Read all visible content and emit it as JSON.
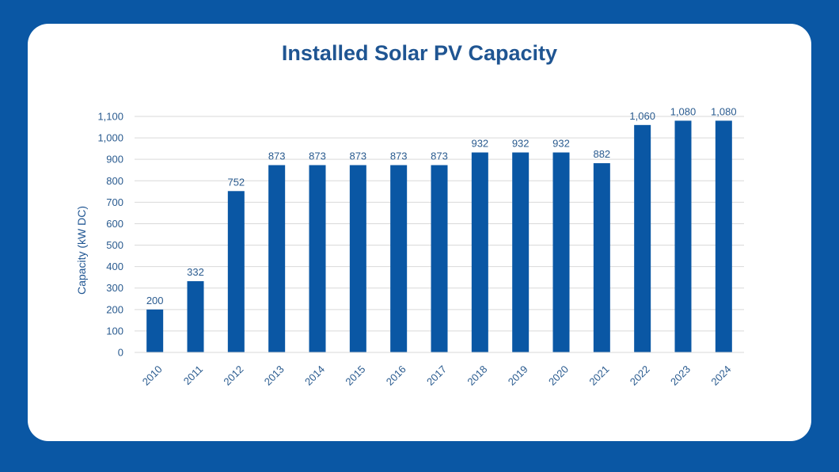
{
  "colors": {
    "background": "#0a57a4",
    "card": "#ffffff",
    "bar": "#0a57a4",
    "text": "#2a5b8f",
    "gridline": "#d9d9d9"
  },
  "chart_data": {
    "type": "bar",
    "title": "Installed Solar PV Capacity",
    "xlabel": "",
    "ylabel": "Capacity (kW DC)",
    "categories": [
      "2010",
      "2011",
      "2012",
      "2013",
      "2014",
      "2015",
      "2016",
      "2017",
      "2018",
      "2019",
      "2020",
      "2021",
      "2022",
      "2023",
      "2024"
    ],
    "values": [
      200,
      332,
      752,
      873,
      873,
      873,
      873,
      873,
      932,
      932,
      932,
      882,
      1060,
      1080,
      1080
    ],
    "data_labels": [
      "200",
      "332",
      "752",
      "873",
      "873",
      "873",
      "873",
      "873",
      "932",
      "932",
      "932",
      "882",
      "1,060",
      "1,080",
      "1,080"
    ],
    "ylim": [
      0,
      1100
    ],
    "yticks": [
      0,
      100,
      200,
      300,
      400,
      500,
      600,
      700,
      800,
      900,
      1000,
      1100
    ],
    "ytick_labels": [
      "0",
      "100",
      "200",
      "300",
      "400",
      "500",
      "600",
      "700",
      "800",
      "900",
      "1,000",
      "1,100"
    ],
    "grid": true,
    "legend": "none"
  }
}
